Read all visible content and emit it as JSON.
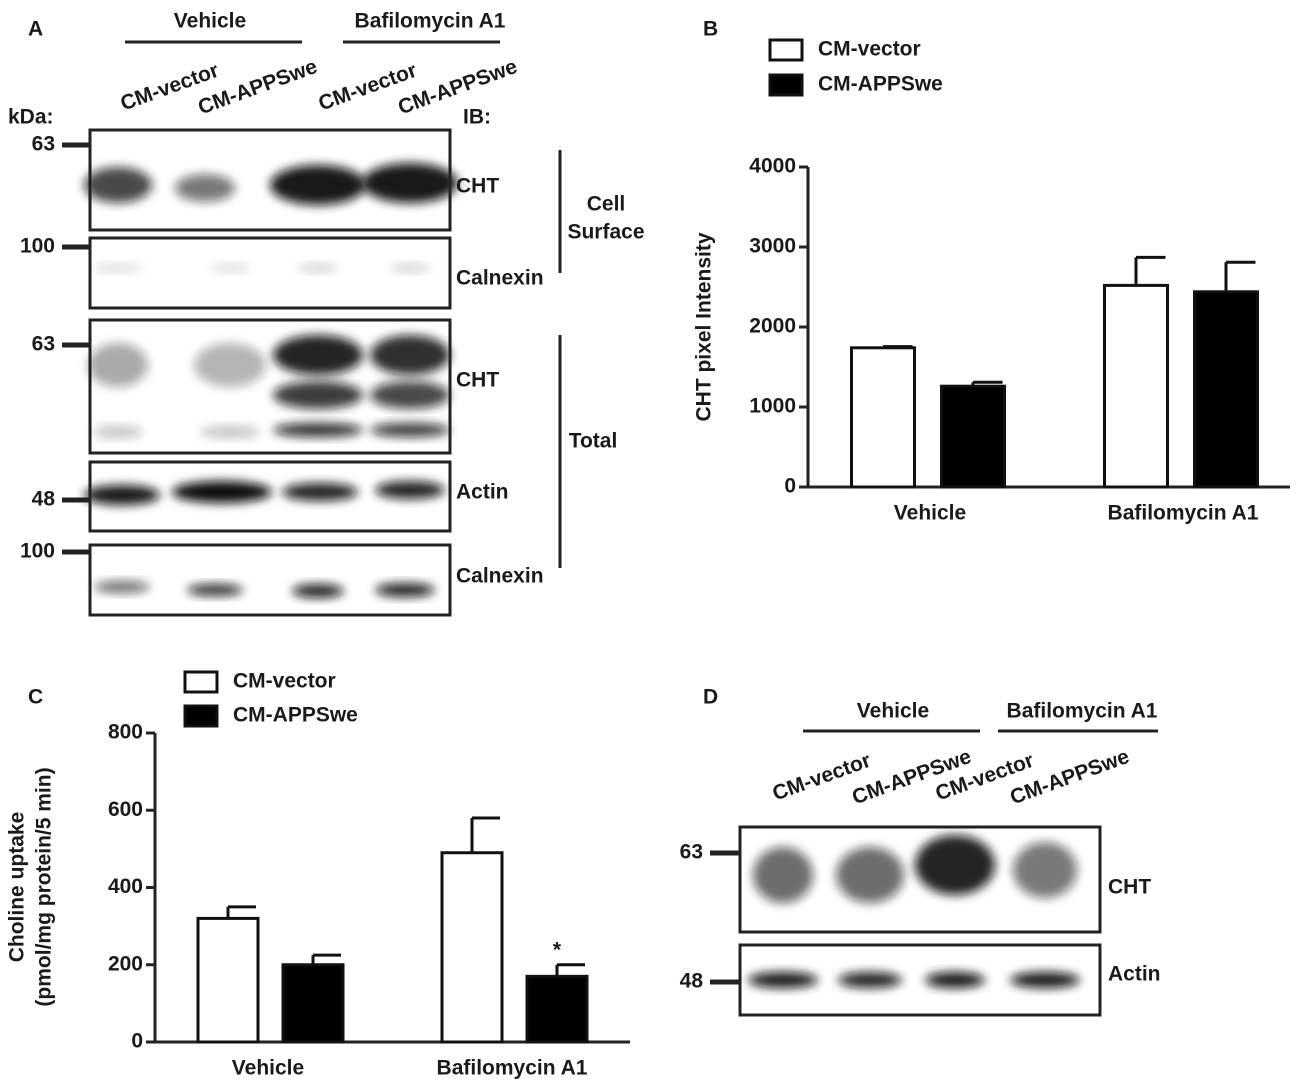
{
  "blot_panels": [
    {
      "panel": "A",
      "groups": [
        "Vehicle",
        "Bafilomycin A1"
      ],
      "lanes": [
        "CM-vector",
        "CM-APPSwe",
        "CM-vector",
        "CM-APPSwe"
      ],
      "kda_label": "kDa:",
      "ib_label": "IB:",
      "blots": [
        {
          "marker": 63,
          "label": "CHT"
        },
        {
          "marker": 100,
          "label": "Calnexin"
        },
        {
          "marker": 63,
          "label": "CHT"
        },
        {
          "marker": 48,
          "label": "Actin"
        },
        {
          "marker": 100,
          "label": "Calnexin"
        }
      ],
      "brackets": [
        [
          "Cell",
          "Surface"
        ],
        [
          "Total"
        ]
      ]
    },
    {
      "panel": "D",
      "groups": [
        "Vehicle",
        "Bafilomycin A1"
      ],
      "lanes": [
        "CM-vector",
        "CM-APPSwe",
        "CM-vector",
        "CM-APPSwe"
      ],
      "blots": [
        {
          "marker": 63,
          "label": "CHT"
        },
        {
          "marker": 48,
          "label": "Actin"
        }
      ]
    }
  ],
  "chart_data": [
    {
      "type": "bar",
      "panel": "B",
      "ylabel": [
        "CHT pixel Intensity"
      ],
      "categories": [
        "Vehicle",
        "Bafilomycin A1"
      ],
      "series": [
        {
          "name": "CM-vector",
          "color": "#ffffff",
          "values": [
            1740,
            2520
          ],
          "errors": [
            15,
            350
          ]
        },
        {
          "name": "CM-APPSwe",
          "color": "#000000",
          "values": [
            1260,
            2440
          ],
          "errors": [
            50,
            370
          ]
        }
      ],
      "ylim": [
        0,
        4000
      ],
      "yticks": [
        0,
        1000,
        2000,
        3000,
        4000
      ],
      "grid": false
    },
    {
      "type": "bar",
      "panel": "C",
      "ylabel": [
        "Choline uptake",
        "(pmol/mg protein/5 min)"
      ],
      "categories": [
        "Vehicle",
        "Bafilomycin A1"
      ],
      "series": [
        {
          "name": "CM-vector",
          "color": "#ffffff",
          "values": [
            320,
            490
          ],
          "errors": [
            30,
            90
          ]
        },
        {
          "name": "CM-APPSwe",
          "color": "#000000",
          "values": [
            200,
            170
          ],
          "errors": [
            25,
            30
          ]
        }
      ],
      "ylim": [
        0,
        800
      ],
      "yticks": [
        0,
        200,
        400,
        600,
        800
      ],
      "grid": false,
      "annotations": [
        {
          "text": "*",
          "series": 1,
          "index": 1
        }
      ]
    }
  ]
}
